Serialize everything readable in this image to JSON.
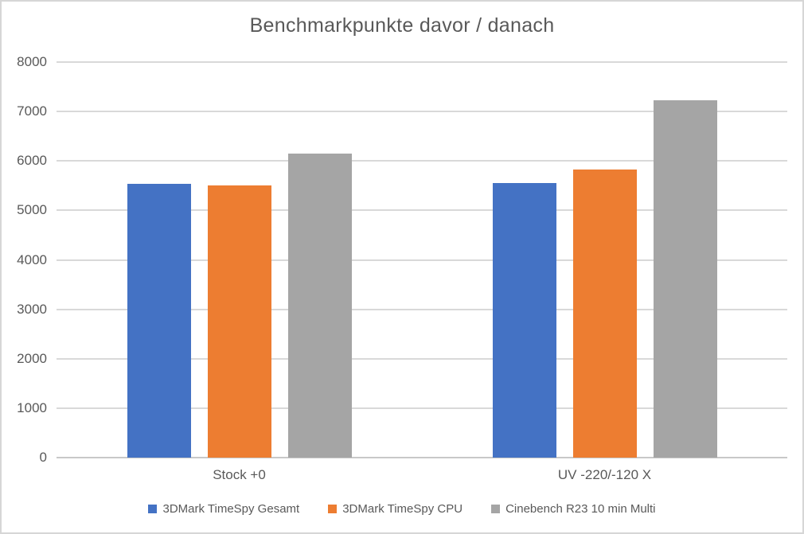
{
  "chart": {
    "title": "Benchmarkpunkte davor / danach"
  },
  "chart_data": {
    "type": "bar",
    "title": "Benchmarkpunkte davor / danach",
    "categories": [
      "Stock +0",
      "UV -220/-120 X"
    ],
    "series": [
      {
        "name": "3DMark TimeSpy Gesamt",
        "color": "#4472C4",
        "values": [
          5540,
          5560
        ]
      },
      {
        "name": "3DMark TimeSpy CPU",
        "color": "#ED7D31",
        "values": [
          5500,
          5835
        ]
      },
      {
        "name": "Cinebench R23 10 min Multi",
        "color": "#A5A5A5",
        "values": [
          6145,
          7230
        ]
      }
    ],
    "xlabel": "",
    "ylabel": "",
    "ylim": [
      0,
      8000
    ],
    "yticks": [
      0,
      1000,
      2000,
      3000,
      4000,
      5000,
      6000,
      7000,
      8000
    ],
    "grid": true,
    "legend_position": "bottom",
    "colors": {
      "text": "#595959",
      "gridline": "#D9D9D9",
      "axis_line": "#C8C8C8",
      "background": "#FFFFFF",
      "frame_border": "#D6D6D6"
    }
  }
}
